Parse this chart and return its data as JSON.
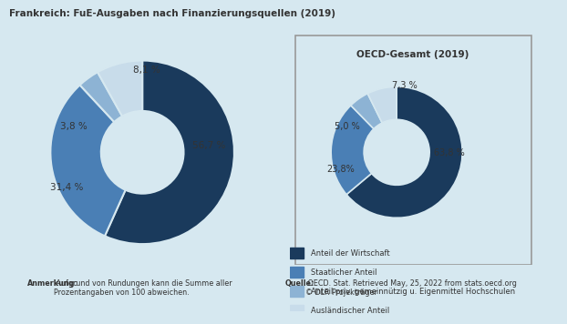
{
  "title_main": "Frankreich: FuE-Ausgaben nach Finanzierungsquellen (2019)",
  "title_inset": "OECD-Gesamt (2019)",
  "bg_color": "#d6e8f0",
  "colors": [
    "#1a3a5c",
    "#4a7fb5",
    "#8db3d4",
    "#c8dcea"
  ],
  "france_values": [
    56.7,
    31.4,
    3.8,
    8.1
  ],
  "france_labels": [
    "56,7 %",
    "31,4 %",
    "3,8 %",
    "8,1 %"
  ],
  "oecd_values": [
    63.8,
    23.8,
    5.0,
    7.3
  ],
  "oecd_labels": [
    "63,8 %",
    "23,8%",
    "5,0 %",
    "7,3 %"
  ],
  "legend_labels": [
    "Anteil der Wirtschaft",
    "Staatlicher Anteil",
    "Anteil priv. gemeinnützig u. Eigenmittel Hochschulen",
    "Ausländischer Anteil"
  ],
  "note_bold": "Anmerkung:",
  "note_text": " Aufgrund von Rundungen kann die Summe aller\nProzentangaben von 100 abweichen.",
  "source_bold": "Quelle:",
  "source_text": " OECD. Stat. Retrieved May, 25, 2022 from stats.oecd.org\n© DLR Projekträger"
}
